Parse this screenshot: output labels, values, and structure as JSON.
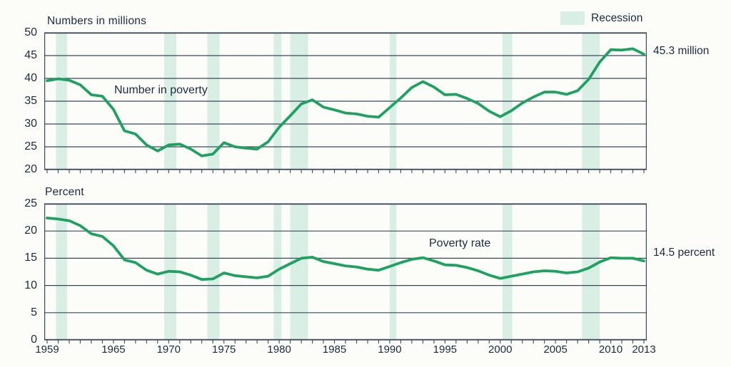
{
  "legend": {
    "label": "Recession",
    "swatch_color": "#d9eee4",
    "position": "top-right"
  },
  "colors": {
    "background": "#fcfcf8",
    "line": "#1fa162",
    "recession_band": "#d9eee4",
    "axis": "#3a4a58",
    "text": "#1b2b3e"
  },
  "x_axis": {
    "ticks": [
      {
        "year": 1959,
        "label": "1959"
      },
      {
        "year": 1965,
        "label": "1965"
      },
      {
        "year": 1970,
        "label": "1970"
      },
      {
        "year": 1975,
        "label": "1975"
      },
      {
        "year": 1980,
        "label": "1980"
      },
      {
        "year": 1985,
        "label": "1985"
      },
      {
        "year": 1990,
        "label": "1990"
      },
      {
        "year": 1995,
        "label": "1995"
      },
      {
        "year": 2000,
        "label": "2000"
      },
      {
        "year": 2005,
        "label": "2005"
      },
      {
        "year": 2010,
        "label": "2010"
      },
      {
        "year": 2013,
        "label": "2013"
      }
    ],
    "range": [
      1959,
      2013
    ],
    "minor_ticks": "every year"
  },
  "recessions": [
    [
      1959.8,
      1960.8
    ],
    [
      1969.6,
      1970.7
    ],
    [
      1973.5,
      1974.6
    ],
    [
      1979.5,
      1980.2
    ],
    [
      1981.0,
      1982.6
    ],
    [
      1990.0,
      1990.6
    ],
    [
      2000.2,
      2001.1
    ],
    [
      2007.4,
      2009.0
    ]
  ],
  "chart_data": [
    {
      "type": "line",
      "title": "Numbers in millions",
      "ylabel": "Numbers in millions",
      "xlabel": "",
      "series_label": "Number in poverty",
      "series_key": "number-in-poverty",
      "end_annotation": "45.3 million",
      "grid": "horizontal",
      "x_start": 1959,
      "x_step": 1,
      "x_end": 2013,
      "ylim": [
        20,
        50
      ],
      "yticks": [
        20,
        25,
        30,
        35,
        40,
        45,
        50
      ],
      "values": [
        39.5,
        39.9,
        39.6,
        38.6,
        36.4,
        36.1,
        33.2,
        28.5,
        27.8,
        25.4,
        24.1,
        25.4,
        25.6,
        24.5,
        23.0,
        23.4,
        25.9,
        25.0,
        24.7,
        24.5,
        26.1,
        29.3,
        31.8,
        34.4,
        35.3,
        33.7,
        33.1,
        32.4,
        32.2,
        31.7,
        31.5,
        33.6,
        35.7,
        38.0,
        39.3,
        38.1,
        36.4,
        36.5,
        35.6,
        34.5,
        32.8,
        31.6,
        32.9,
        34.6,
        35.9,
        37.0,
        37.0,
        36.5,
        37.3,
        39.8,
        43.6,
        46.3,
        46.2,
        46.5,
        45.3
      ]
    },
    {
      "type": "line",
      "title": "Percent",
      "ylabel": "Percent",
      "xlabel": "",
      "series_label": "Poverty rate",
      "series_key": "poverty-rate",
      "end_annotation": "14.5 percent",
      "grid": "horizontal",
      "x_start": 1959,
      "x_step": 1,
      "x_end": 2013,
      "ylim": [
        0,
        25
      ],
      "yticks": [
        0,
        5,
        10,
        15,
        20,
        25
      ],
      "values": [
        22.4,
        22.2,
        21.9,
        21.0,
        19.5,
        19.0,
        17.3,
        14.7,
        14.2,
        12.8,
        12.1,
        12.6,
        12.5,
        11.9,
        11.1,
        11.2,
        12.3,
        11.8,
        11.6,
        11.4,
        11.7,
        13.0,
        14.0,
        15.0,
        15.2,
        14.4,
        14.0,
        13.6,
        13.4,
        13.0,
        12.8,
        13.5,
        14.2,
        14.8,
        15.1,
        14.5,
        13.8,
        13.7,
        13.3,
        12.7,
        11.9,
        11.3,
        11.7,
        12.1,
        12.5,
        12.7,
        12.6,
        12.3,
        12.5,
        13.2,
        14.3,
        15.1,
        15.0,
        15.0,
        14.5
      ]
    }
  ]
}
